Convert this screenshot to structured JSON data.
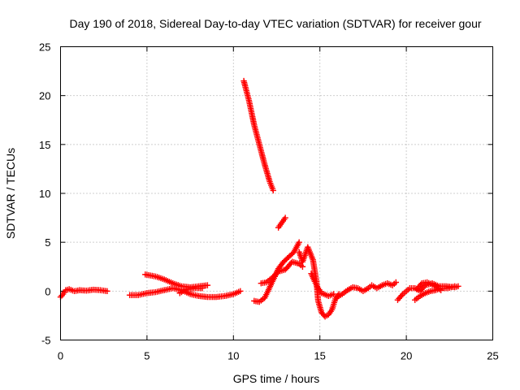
{
  "chart_data": {
    "type": "scatter",
    "title": "Day 190 of 2018, Sidereal Day-to-day VTEC variation (SDTVAR) for receiver gour",
    "xlabel": "GPS time / hours",
    "ylabel": "SDTVAR / TECUs",
    "xlim": [
      0,
      25
    ],
    "ylim": [
      -5,
      25
    ],
    "x_ticks": [
      0,
      5,
      10,
      15,
      20,
      25
    ],
    "y_ticks": [
      -5,
      0,
      5,
      10,
      15,
      20,
      25
    ],
    "grid": true,
    "marker": "+",
    "series": [
      {
        "name": "SDTVAR",
        "color": "#ff0000",
        "segments": [
          [
            [
              0.0,
              -0.6
            ],
            [
              0.15,
              -0.3
            ],
            [
              0.3,
              0.1
            ],
            [
              0.5,
              0.2
            ],
            [
              0.8,
              0.0
            ],
            [
              1.1,
              0.1
            ],
            [
              1.5,
              0.05
            ],
            [
              1.9,
              0.15
            ],
            [
              2.3,
              0.1
            ],
            [
              2.7,
              0.0
            ]
          ],
          [
            [
              4.0,
              -0.4
            ],
            [
              4.5,
              -0.4
            ],
            [
              5.0,
              -0.2
            ],
            [
              5.5,
              -0.1
            ],
            [
              6.0,
              0.1
            ],
            [
              6.5,
              0.3
            ],
            [
              7.0,
              0.1
            ],
            [
              7.5,
              -0.3
            ],
            [
              8.0,
              -0.5
            ],
            [
              8.5,
              -0.6
            ],
            [
              9.0,
              -0.6
            ],
            [
              9.5,
              -0.5
            ],
            [
              10.0,
              -0.3
            ],
            [
              10.4,
              0.0
            ]
          ],
          [
            [
              4.9,
              1.7
            ],
            [
              5.5,
              1.5
            ],
            [
              6.0,
              1.2
            ],
            [
              6.5,
              0.8
            ],
            [
              7.0,
              0.5
            ],
            [
              7.5,
              0.4
            ],
            [
              8.0,
              0.5
            ],
            [
              8.5,
              0.6
            ]
          ],
          [
            [
              6.9,
              -0.2
            ],
            [
              7.3,
              0.2
            ],
            [
              7.8,
              0.3
            ],
            [
              8.2,
              0.3
            ]
          ],
          [
            [
              10.6,
              21.5
            ],
            [
              10.9,
              19.5
            ],
            [
              11.2,
              17.0
            ],
            [
              11.5,
              15.0
            ],
            [
              11.8,
              13.0
            ],
            [
              12.1,
              11.2
            ],
            [
              12.3,
              10.3
            ]
          ],
          [
            [
              12.6,
              6.5
            ],
            [
              12.8,
              7.0
            ],
            [
              13.0,
              7.5
            ]
          ],
          [
            [
              11.2,
              -1.0
            ],
            [
              11.5,
              -1.1
            ],
            [
              11.8,
              -0.7
            ],
            [
              12.0,
              0.0
            ],
            [
              12.2,
              0.8
            ],
            [
              12.4,
              1.5
            ],
            [
              12.6,
              2.3
            ],
            [
              12.9,
              3.0
            ],
            [
              13.2,
              3.5
            ],
            [
              13.5,
              4.0
            ],
            [
              13.8,
              5.0
            ]
          ],
          [
            [
              11.6,
              0.8
            ],
            [
              11.9,
              0.9
            ],
            [
              12.2,
              1.3
            ],
            [
              12.6,
              2.0
            ],
            [
              13.0,
              2.2
            ],
            [
              13.4,
              3.0
            ],
            [
              13.8,
              2.8
            ],
            [
              14.0,
              2.5
            ]
          ],
          [
            [
              13.8,
              4.0
            ],
            [
              14.0,
              3.0
            ],
            [
              14.3,
              4.5
            ],
            [
              14.6,
              3.2
            ],
            [
              14.8,
              1.0
            ],
            [
              14.9,
              -1.0
            ],
            [
              15.1,
              -2.2
            ],
            [
              15.3,
              -2.6
            ],
            [
              15.5,
              -2.4
            ],
            [
              15.7,
              -1.9
            ],
            [
              15.9,
              -0.8
            ],
            [
              16.1,
              -0.3
            ]
          ],
          [
            [
              14.5,
              1.8
            ],
            [
              14.7,
              1.0
            ],
            [
              14.9,
              0.3
            ],
            [
              15.1,
              -0.2
            ],
            [
              15.5,
              -0.5
            ],
            [
              15.8,
              -0.3
            ]
          ],
          [
            [
              16.0,
              -0.6
            ],
            [
              16.3,
              -0.3
            ],
            [
              16.6,
              0.1
            ],
            [
              16.9,
              0.4
            ],
            [
              17.2,
              0.3
            ],
            [
              17.5,
              0.0
            ],
            [
              17.8,
              0.3
            ],
            [
              18.0,
              0.6
            ],
            [
              18.3,
              0.3
            ],
            [
              18.6,
              0.6
            ],
            [
              18.9,
              0.8
            ],
            [
              19.2,
              0.6
            ],
            [
              19.4,
              0.9
            ]
          ],
          [
            [
              19.5,
              -0.9
            ],
            [
              19.8,
              -0.3
            ],
            [
              20.0,
              0.0
            ],
            [
              20.2,
              0.3
            ],
            [
              20.5,
              0.3
            ],
            [
              20.8,
              0.0
            ],
            [
              21.1,
              0.6
            ],
            [
              21.5,
              0.8
            ],
            [
              21.9,
              0.5
            ],
            [
              22.3,
              0.5
            ],
            [
              22.8,
              0.4
            ],
            [
              23.0,
              0.5
            ]
          ],
          [
            [
              20.5,
              -0.9
            ],
            [
              20.8,
              -0.5
            ],
            [
              21.1,
              -0.2
            ],
            [
              21.4,
              0.0
            ],
            [
              21.7,
              0.1
            ],
            [
              22.0,
              0.3
            ],
            [
              22.4,
              0.3
            ],
            [
              22.8,
              0.5
            ]
          ],
          [
            [
              20.6,
              0.2
            ],
            [
              20.9,
              0.8
            ],
            [
              21.2,
              0.9
            ],
            [
              21.6,
              0.6
            ],
            [
              22.0,
              0.1
            ]
          ]
        ]
      }
    ]
  }
}
